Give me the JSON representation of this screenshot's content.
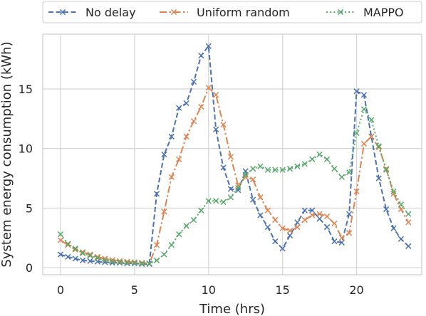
{
  "chart_data": {
    "type": "line",
    "title": "",
    "xlabel": "Time (hrs)",
    "ylabel": "System energy consumption (kWh)",
    "xlim": [
      -1.2,
      24.4
    ],
    "ylim": [
      -0.6,
      19.6
    ],
    "xticks": [
      0,
      5,
      10,
      15,
      20
    ],
    "yticks": [
      0,
      5,
      10,
      15
    ],
    "grid": true,
    "legend": {
      "placement": "top, outside plot",
      "columns": 3
    },
    "x": [
      0,
      0.5,
      1,
      1.5,
      2,
      2.5,
      3,
      3.5,
      4,
      4.5,
      5,
      5.5,
      6,
      6.5,
      7,
      7.5,
      8,
      8.5,
      9,
      9.5,
      10,
      10.5,
      11,
      11.5,
      12,
      12.5,
      13,
      13.5,
      14,
      14.5,
      15,
      15.5,
      16,
      16.5,
      17,
      17.5,
      18,
      18.5,
      19,
      19.5,
      20,
      20.5,
      21,
      21.5,
      22,
      22.5,
      23,
      23.5
    ],
    "series": [
      {
        "name": "No delay",
        "color": "#4c72b0",
        "dash": "dashed",
        "marker": "x",
        "values": [
          1.1,
          0.9,
          0.75,
          0.6,
          0.55,
          0.5,
          0.45,
          0.4,
          0.4,
          0.35,
          0.35,
          0.3,
          0.3,
          6.2,
          9.5,
          11.0,
          13.4,
          13.8,
          15.6,
          17.8,
          18.6,
          11.6,
          8.4,
          6.6,
          6.5,
          8.1,
          5.7,
          4.4,
          3.4,
          2.2,
          1.6,
          2.7,
          3.8,
          4.8,
          4.8,
          4.1,
          3.4,
          2.2,
          2.1,
          4.5,
          14.8,
          14.5,
          11.0,
          7.5,
          4.9,
          3.3,
          2.4,
          1.8
        ]
      },
      {
        "name": "Uniform random",
        "color": "#dd8452",
        "dash": "dashdot",
        "marker": "x",
        "values": [
          2.3,
          1.9,
          1.5,
          1.3,
          1.1,
          0.9,
          0.75,
          0.65,
          0.55,
          0.5,
          0.45,
          0.4,
          0.35,
          1.9,
          4.7,
          7.6,
          9.1,
          11.0,
          12.3,
          13.5,
          15.1,
          14.5,
          12.0,
          9.3,
          6.9,
          7.6,
          7.4,
          5.9,
          4.8,
          4.0,
          3.3,
          3.1,
          3.4,
          4.0,
          4.4,
          4.5,
          4.3,
          3.7,
          2.5,
          2.9,
          6.4,
          10.4,
          11.0,
          10.1,
          8.3,
          6.2,
          4.9,
          3.8
        ]
      },
      {
        "name": "MAPPO",
        "color": "#55a868",
        "dash": "dotted",
        "marker": "x",
        "values": [
          2.8,
          2.0,
          1.6,
          1.2,
          1.0,
          0.8,
          0.6,
          0.5,
          0.45,
          0.4,
          0.4,
          0.35,
          0.35,
          0.6,
          1.1,
          1.9,
          2.8,
          3.5,
          4.0,
          4.8,
          5.6,
          5.6,
          5.5,
          5.9,
          6.7,
          7.8,
          8.3,
          8.5,
          8.2,
          8.2,
          8.2,
          8.3,
          8.5,
          8.7,
          9.1,
          9.5,
          9.1,
          8.3,
          7.6,
          8.0,
          11.3,
          13.3,
          12.4,
          10.2,
          8.2,
          6.4,
          5.3,
          4.5
        ]
      }
    ]
  }
}
